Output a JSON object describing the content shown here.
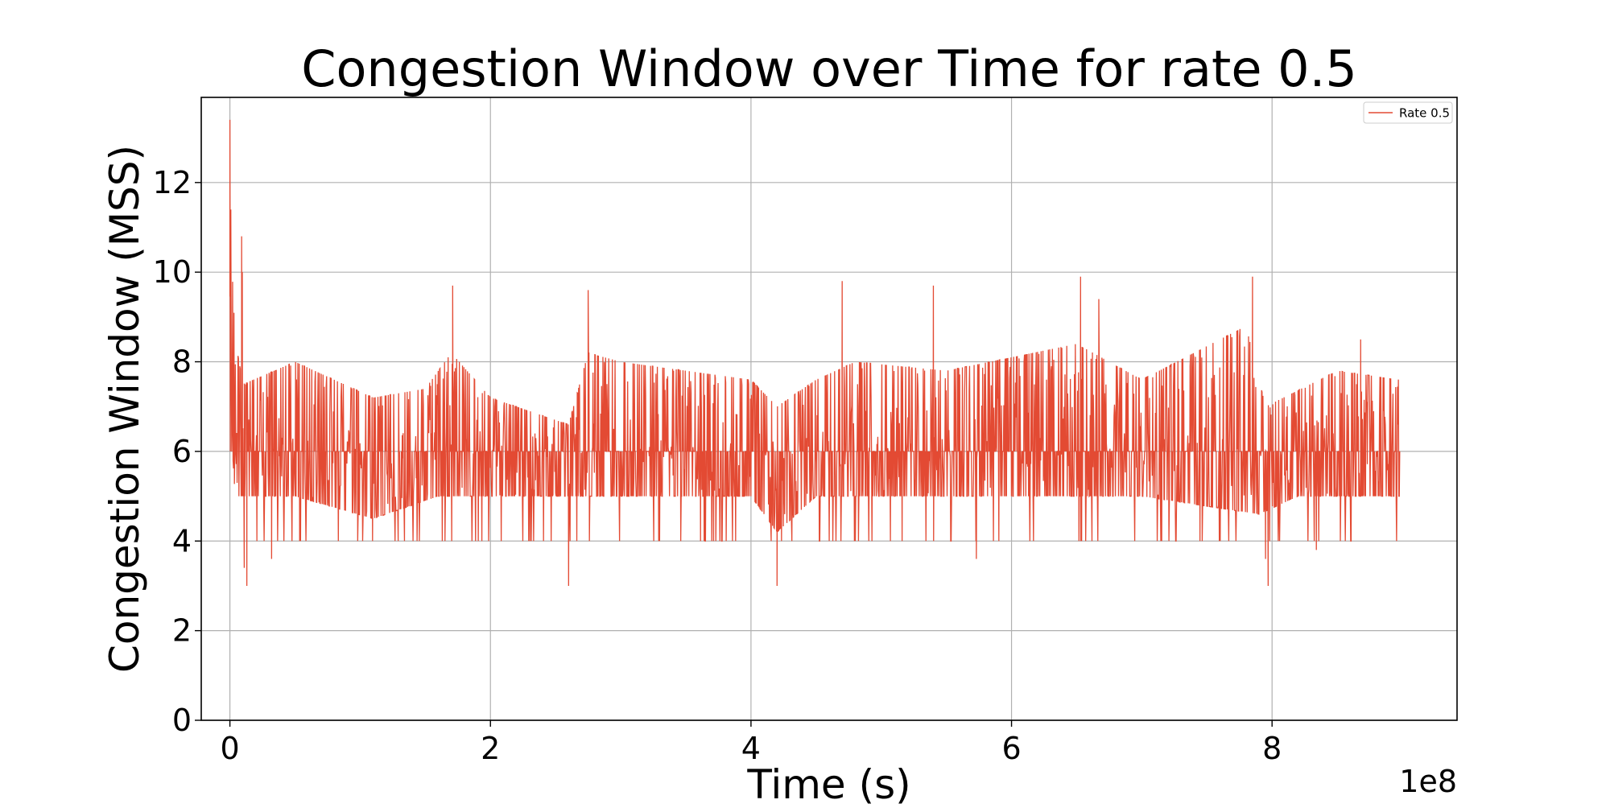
{
  "chart_data": {
    "type": "line",
    "title": "Congestion Window over Time for rate 0.5",
    "xlabel": "Time (s)",
    "ylabel": "Congestion Window (MSS)",
    "x_offset_label": "1e8",
    "x_multiplier": 100000000,
    "xlim": [
      -22000000,
      942000000
    ],
    "ylim": [
      0,
      13.9
    ],
    "x_ticks": [
      0,
      200000000,
      400000000,
      600000000,
      800000000
    ],
    "x_tick_labels": [
      "0",
      "2",
      "4",
      "6",
      "8"
    ],
    "y_ticks": [
      0,
      2,
      4,
      6,
      8,
      10,
      12
    ],
    "y_tick_labels": [
      "0",
      "2",
      "4",
      "6",
      "8",
      "10",
      "12"
    ],
    "grid": true,
    "legend_position": "top-right",
    "colors": {
      "series": "#e34a33",
      "grid": "#b0b0b0",
      "axes": "#000000"
    },
    "series": [
      {
        "name": "Rate 0.5",
        "x_range": [
          0,
          898000000
        ],
        "samples": 2600,
        "band_low": [
          [
            0,
            5.5
          ],
          [
            1000000,
            6.5
          ],
          [
            4000000,
            5.0
          ],
          [
            10000000,
            5.0
          ],
          [
            50000000,
            5.0
          ],
          [
            110000000,
            4.5
          ],
          [
            160000000,
            5.0
          ],
          [
            200000000,
            5.0
          ],
          [
            270000000,
            5.0
          ],
          [
            350000000,
            5.0
          ],
          [
            400000000,
            5.0
          ],
          [
            420000000,
            4.2
          ],
          [
            450000000,
            5.0
          ],
          [
            550000000,
            5.0
          ],
          [
            650000000,
            5.0
          ],
          [
            700000000,
            5.0
          ],
          [
            790000000,
            4.6
          ],
          [
            820000000,
            5.0
          ],
          [
            898000000,
            5.0
          ]
        ],
        "band_high": [
          [
            0,
            13.4
          ],
          [
            1000000,
            10.5
          ],
          [
            4000000,
            8.5
          ],
          [
            10000000,
            7.5
          ],
          [
            50000000,
            8.0
          ],
          [
            110000000,
            7.2
          ],
          [
            150000000,
            7.4
          ],
          [
            170000000,
            8.2
          ],
          [
            200000000,
            7.2
          ],
          [
            260000000,
            6.6
          ],
          [
            275000000,
            8.2
          ],
          [
            300000000,
            8.0
          ],
          [
            400000000,
            7.6
          ],
          [
            420000000,
            7.0
          ],
          [
            450000000,
            7.6
          ],
          [
            480000000,
            8.0
          ],
          [
            550000000,
            7.8
          ],
          [
            650000000,
            8.4
          ],
          [
            700000000,
            7.6
          ],
          [
            780000000,
            8.8
          ],
          [
            795000000,
            7.0
          ],
          [
            850000000,
            7.8
          ],
          [
            898000000,
            7.6
          ]
        ],
        "spikes": [
          [
            0,
            13.4
          ],
          [
            500000,
            11.0
          ],
          [
            9000000,
            10.8
          ],
          [
            9500000,
            10.0
          ],
          [
            11000000,
            3.4
          ],
          [
            13000000,
            3.0
          ],
          [
            32000000,
            3.6
          ],
          [
            171000000,
            9.7
          ],
          [
            275000000,
            9.6
          ],
          [
            260000000,
            3.0
          ],
          [
            420000000,
            3.0
          ],
          [
            470000000,
            9.8
          ],
          [
            540000000,
            9.7
          ],
          [
            573000000,
            3.6
          ],
          [
            653000000,
            9.9
          ],
          [
            667000000,
            9.4
          ],
          [
            785000000,
            9.9
          ],
          [
            795000000,
            3.6
          ],
          [
            797000000,
            3.0
          ],
          [
            834000000,
            3.8
          ],
          [
            868000000,
            8.5
          ]
        ]
      }
    ]
  }
}
